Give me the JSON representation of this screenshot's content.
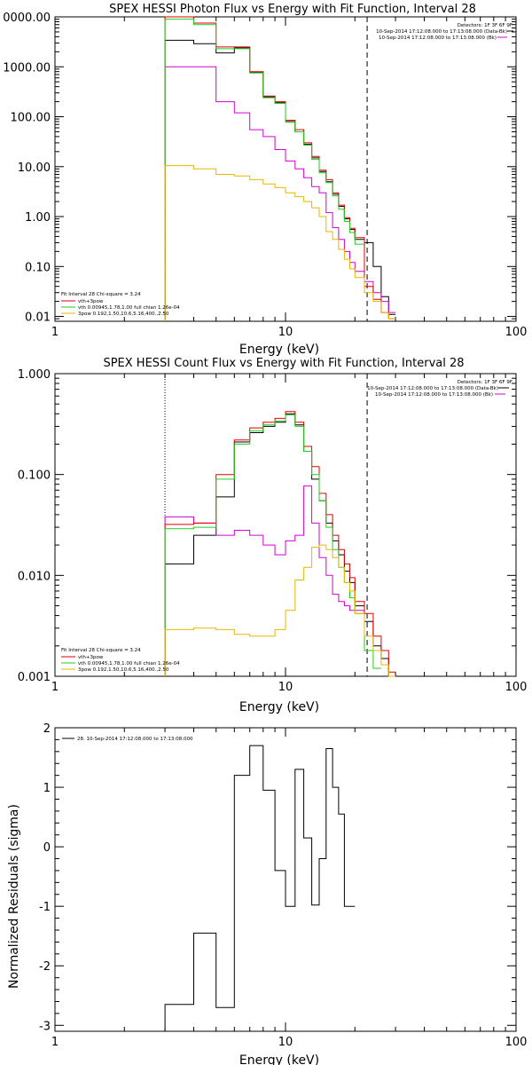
{
  "chart_data": [
    {
      "type": "line",
      "title": "SPEX HESSI Photon Flux vs Energy with Fit Function, Interval 28",
      "xlabel": "Energy (keV)",
      "ylabel": "",
      "xscale": "log",
      "yscale": "log",
      "xlim": [
        1,
        100
      ],
      "ylim": [
        0.008,
        10000
      ],
      "x_ticks": [
        "1",
        "10",
        "100"
      ],
      "y_ticks": [
        "0.01",
        "0.10",
        "1.00",
        "10.00",
        "100.00",
        "1000.00",
        "0000.00"
      ],
      "y_tick_values": [
        0.01,
        0.1,
        1,
        10,
        100,
        1000,
        10000
      ],
      "vlines": [
        {
          "x": 3.0,
          "style": "dotted"
        },
        {
          "x": 22.6,
          "style": "dashed"
        }
      ],
      "legend_top": [
        "Detectors: 1F 3F 6F 9F",
        "10-Sep-2014 17:12:08.000 to 17:13:08.000 (Data-Bk)",
        "10-Sep-2014 17:12:08.000 to 17:13:08.000 (Bk)"
      ],
      "legend_bottom": [
        "Fit Interval 28   Chi-square = 3.24",
        "vth+3pow",
        "vth 0.00945,1.78,1.00  full chian 1.26e-04",
        "3pow 0.192,1.50,10.6,5.16,400.,2.50"
      ],
      "bin_edges": [
        3.0,
        4.0,
        5.0,
        6.0,
        7.0,
        8.0,
        9.0,
        10.0,
        11.0,
        12.0,
        13.0,
        14.0,
        15.0,
        16.0,
        17.0,
        18.0,
        19.0,
        20.0,
        22.0,
        24.0,
        26.0,
        28.0,
        30.0
      ],
      "series": [
        {
          "name": "Data-Bk",
          "color": "#000000",
          "values": [
            3400,
            2900,
            1900,
            2400,
            780,
            250,
            190,
            80,
            50,
            28,
            15,
            8,
            5,
            2.8,
            1.6,
            0.9,
            0.55,
            0.35,
            0.3,
            0.1,
            0.025,
            0.011
          ]
        },
        {
          "name": "Bk",
          "color": "#d400d4",
          "values": [
            1000,
            1000,
            200,
            120,
            55,
            40,
            22,
            13,
            9,
            6,
            4,
            3,
            1.2,
            0.6,
            0.35,
            0.2,
            0.12,
            0.08,
            0.05,
            0.03,
            0.02,
            0.012
          ]
        },
        {
          "name": "vth+3pow",
          "color": "#e00000",
          "values": [
            10000,
            7500,
            2500,
            2500,
            800,
            260,
            200,
            85,
            55,
            30,
            16,
            8.5,
            5.5,
            3.0,
            1.7,
            0.95,
            0.58,
            0.38,
            0.04,
            0.022,
            0.012,
            0.009
          ]
        },
        {
          "name": "vth",
          "color": "#22cc22",
          "values": [
            9000,
            7000,
            2300,
            2300,
            750,
            240,
            185,
            78,
            50,
            27,
            14,
            7.5,
            4.8,
            2.6,
            1.4,
            0.8,
            0.48,
            0.28,
            0.0,
            0.0,
            0.0,
            0.0
          ]
        },
        {
          "name": "3pow",
          "color": "#e6b800",
          "values": [
            10.5,
            9.0,
            7.0,
            6.5,
            5.5,
            4.5,
            3.8,
            3.0,
            2.5,
            2.0,
            1.5,
            1.0,
            0.5,
            0.35,
            0.22,
            0.14,
            0.09,
            0.06,
            0.03,
            0.02,
            0.012,
            0.009
          ]
        }
      ]
    },
    {
      "type": "line",
      "title": "SPEX HESSI Count Flux vs Energy with Fit Function, Interval 28",
      "xlabel": "Energy (keV)",
      "ylabel": "",
      "xscale": "log",
      "yscale": "log",
      "xlim": [
        1,
        100
      ],
      "ylim": [
        0.001,
        1.0
      ],
      "x_ticks": [
        "1",
        "10",
        "100"
      ],
      "y_ticks": [
        "0.001",
        "0.010",
        "0.100",
        "1.000"
      ],
      "y_tick_values": [
        0.001,
        0.01,
        0.1,
        1.0
      ],
      "vlines": [
        {
          "x": 3.0,
          "style": "dotted"
        },
        {
          "x": 22.6,
          "style": "dashed"
        }
      ],
      "legend_top": [
        "Detectors: 1F 3F 6F 9F",
        "10-Sep-2014 17:12:08.000 to 17:13:08.000 (Data-Bk)",
        "10-Sep-2014 17:12:08.000 to 17:13:08.000 (Bk)"
      ],
      "legend_bottom": [
        "Fit Interval 28   Chi-square = 3.24",
        "vth+3pow",
        "vth 0.00945,1.78,1.00  full chian 1.26e-04",
        "3pow 0.192,1.50,10.6,5.16,400.,2.50"
      ],
      "bin_edges": [
        3.0,
        4.0,
        5.0,
        6.0,
        7.0,
        8.0,
        9.0,
        10.0,
        11.0,
        12.0,
        13.0,
        14.0,
        15.0,
        16.0,
        17.0,
        18.0,
        19.0,
        20.0,
        22.0,
        24.0,
        26.0,
        28.0,
        30.0
      ],
      "series": [
        {
          "name": "Data-Bk",
          "color": "#000000",
          "values": [
            0.013,
            0.025,
            0.06,
            0.21,
            0.26,
            0.3,
            0.33,
            0.4,
            0.31,
            0.17,
            0.09,
            0.055,
            0.033,
            0.022,
            0.016,
            0.011,
            0.0085,
            0.005,
            0.0035,
            0.002,
            0.0015,
            0.001
          ]
        },
        {
          "name": "Bk",
          "color": "#d400d4",
          "values": [
            0.038,
            0.033,
            0.025,
            0.028,
            0.025,
            0.02,
            0.016,
            0.022,
            0.025,
            0.077,
            0.033,
            0.015,
            0.01,
            0.0065,
            0.0055,
            0.005,
            0.0045,
            0.0045,
            0.0,
            0.0,
            0.0,
            0.0
          ]
        },
        {
          "name": "vth+3pow",
          "color": "#e00000",
          "values": [
            0.032,
            0.033,
            0.1,
            0.22,
            0.29,
            0.33,
            0.36,
            0.42,
            0.33,
            0.19,
            0.12,
            0.065,
            0.04,
            0.025,
            0.018,
            0.013,
            0.0095,
            0.0055,
            0.0042,
            0.0025,
            0.0018,
            0.0011
          ]
        },
        {
          "name": "vth",
          "color": "#22cc22",
          "values": [
            0.029,
            0.03,
            0.09,
            0.2,
            0.27,
            0.31,
            0.34,
            0.39,
            0.3,
            0.17,
            0.1,
            0.055,
            0.03,
            0.018,
            0.012,
            0.0085,
            0.006,
            0.0042,
            0.0018,
            0.0012,
            0.0,
            0.0
          ]
        },
        {
          "name": "3pow",
          "color": "#e6b800",
          "values": [
            0.0029,
            0.003,
            0.0029,
            0.0026,
            0.0025,
            0.0025,
            0.0029,
            0.0045,
            0.009,
            0.012,
            0.019,
            0.02,
            0.018,
            0.015,
            0.012,
            0.0085,
            0.007,
            0.0042,
            0.0025,
            0.0018,
            0.0013,
            0.001
          ]
        }
      ]
    },
    {
      "type": "line",
      "title": "",
      "xlabel": "Energy (keV)",
      "ylabel": "Normalized Residuals (sigma)",
      "xscale": "log",
      "yscale": "linear",
      "xlim": [
        1,
        100
      ],
      "ylim": [
        -3.1,
        2.0
      ],
      "x_ticks": [
        "1",
        "10",
        "100"
      ],
      "y_ticks": [
        "-3",
        "-2",
        "-1",
        "0",
        "1",
        "2"
      ],
      "y_tick_values": [
        -3,
        -2,
        -1,
        0,
        1,
        2
      ],
      "legend_top": [
        "28. 10-Sep-2014 17:12:08.000 to 17:13:08.000"
      ],
      "bin_edges": [
        3.0,
        4.0,
        5.0,
        6.0,
        7.0,
        8.0,
        9.0,
        10.0,
        11.0,
        12.0,
        13.0,
        14.0,
        15.0,
        16.0,
        17.0,
        18.0,
        19.0,
        20.0
      ],
      "series": [
        {
          "name": "28. 10-Sep-2014 17:12:08.000 to 17:13:08.000",
          "color": "#000000",
          "values": [
            -2.65,
            -1.45,
            -2.7,
            1.2,
            1.7,
            0.95,
            -0.4,
            -1.0,
            1.3,
            0.15,
            -0.98,
            -0.2,
            1.65,
            1.0,
            0.55,
            -1.0,
            -1.0
          ]
        }
      ]
    }
  ]
}
